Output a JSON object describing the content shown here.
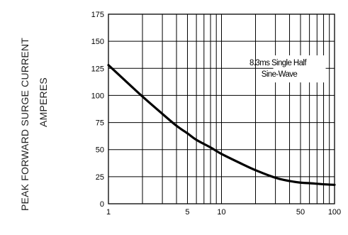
{
  "chart_data": {
    "type": "line",
    "title": "",
    "ylabel_line1": "PEAK FORWARD SURGE CURRENT",
    "ylabel_line2": "AMPERES",
    "xlabel": "",
    "xscale": "log",
    "xlim": [
      1,
      100
    ],
    "ylim": [
      0,
      175
    ],
    "grid": true,
    "x_ticks": [
      "1",
      "5",
      "10",
      "50",
      "100"
    ],
    "y_ticks": [
      "0",
      "25",
      "50",
      "75",
      "100",
      "125",
      "150",
      "175"
    ],
    "annotation_line1": "8.3ms Single Half",
    "annotation_line2": "Sine-Wave",
    "series": [
      {
        "x": [
          1,
          1.5,
          2,
          3,
          4,
          5,
          6,
          8,
          10,
          15,
          20,
          30,
          40,
          50,
          60,
          80,
          100
        ],
        "y": [
          128,
          111,
          99,
          83,
          72,
          65,
          59,
          52,
          46,
          37,
          31,
          24,
          21,
          19.5,
          19,
          18,
          17.5
        ]
      }
    ]
  }
}
